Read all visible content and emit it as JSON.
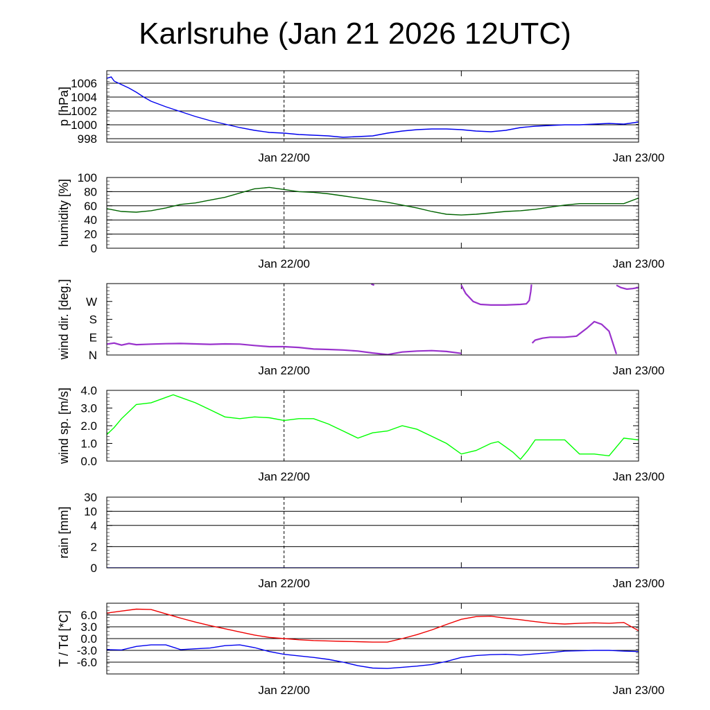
{
  "title": "Karlsruhe (Jan 21 2026 12UTC)",
  "x_axis": {
    "tick_labels": [
      "Jan 22/00",
      "Jan 23/00"
    ],
    "range_hours": [
      0,
      36
    ],
    "label_hours": [
      12,
      36
    ],
    "minor_tick_hours": [
      24
    ],
    "dashed_line_hours": 12
  },
  "chart_data": [
    {
      "id": "pressure",
      "type": "line",
      "ylabel": "p [hPa]",
      "ylim": [
        997.5,
        1007.8
      ],
      "yticks": [
        998,
        1000,
        1002,
        1004,
        1006
      ],
      "ytick_labels": [
        "998",
        "1000",
        "1002",
        "1004",
        "1006"
      ],
      "grid": true,
      "series": [
        {
          "color": "#0000ee",
          "x": [
            0,
            0.3,
            0.5,
            1,
            1.5,
            2,
            2.5,
            3,
            4,
            5,
            6,
            7,
            8,
            9,
            10,
            11,
            12,
            13,
            14,
            15,
            16,
            17,
            18,
            19,
            20,
            21,
            22,
            23,
            24,
            25,
            26,
            27,
            28,
            29,
            30,
            31,
            32,
            33,
            34,
            35,
            36
          ],
          "values": [
            1006.7,
            1006.9,
            1006.3,
            1005.8,
            1005.3,
            1004.7,
            1004.0,
            1003.4,
            1002.6,
            1001.9,
            1001.2,
            1000.6,
            1000.1,
            999.6,
            999.2,
            998.9,
            998.8,
            998.6,
            998.5,
            998.4,
            998.2,
            998.3,
            998.4,
            998.8,
            999.1,
            999.3,
            999.4,
            999.4,
            999.3,
            999.1,
            999.0,
            999.2,
            999.6,
            999.8,
            999.9,
            1000.0,
            1000.0,
            1000.1,
            1000.2,
            1000.1,
            1000.4
          ]
        }
      ]
    },
    {
      "id": "humidity",
      "type": "line",
      "ylabel": "humidity [%]",
      "ylim": [
        0,
        100
      ],
      "yticks": [
        0,
        20,
        40,
        60,
        80,
        100
      ],
      "ytick_labels": [
        "0",
        "20",
        "40",
        "60",
        "80",
        "100"
      ],
      "grid": true,
      "series": [
        {
          "color": "#006400",
          "x": [
            0,
            1,
            2,
            3,
            4,
            5,
            6,
            7,
            8,
            9,
            10,
            11,
            12,
            13,
            14,
            15,
            16,
            17,
            18,
            19,
            20,
            21,
            22,
            23,
            24,
            25,
            26,
            27,
            28,
            29,
            30,
            31,
            32,
            33,
            34,
            35,
            36
          ],
          "values": [
            56,
            52,
            51,
            53,
            57,
            62,
            64,
            68,
            72,
            78,
            84,
            86,
            83,
            80,
            79,
            77,
            74,
            71,
            68,
            65,
            61,
            57,
            52,
            48,
            47,
            48,
            50,
            52,
            53,
            55,
            58,
            61,
            63,
            63,
            63,
            63,
            71
          ]
        }
      ]
    },
    {
      "id": "wind-direction",
      "type": "scatter",
      "ylabel": "wind dir. [deg.]",
      "ylim": [
        0,
        360
      ],
      "yticks": [
        0,
        90,
        180,
        270
      ],
      "ytick_labels": [
        "N",
        "E",
        "S",
        "W"
      ],
      "grid": false,
      "series": [
        {
          "color": "#9932cc",
          "segments": [
            {
              "x": [
                0,
                0.5,
                1,
                1.5,
                2,
                3,
                4,
                5,
                6,
                7,
                8,
                9,
                10,
                11,
                12,
                13,
                14,
                15,
                16,
                17,
                18,
                19,
                20,
                21,
                22,
                23,
                24
              ],
              "values": [
                55,
                60,
                50,
                58,
                52,
                55,
                57,
                58,
                56,
                54,
                56,
                55,
                48,
                42,
                42,
                38,
                30,
                28,
                25,
                20,
                10,
                2,
                15,
                20,
                22,
                18,
                8
              ]
            },
            {
              "x": [
                17.9,
                18.1
              ],
              "values": [
                358,
                352
              ]
            },
            {
              "x": [
                24,
                24.3,
                24.8,
                25.3,
                26,
                27,
                28,
                28.4,
                28.6,
                28.7,
                28.75
              ],
              "values": [
                352,
                310,
                270,
                255,
                252,
                252,
                255,
                258,
                275,
                320,
                355
              ]
            },
            {
              "x": [
                28.8,
                29,
                29.5,
                30,
                31,
                31.8,
                32.5,
                33,
                33.5,
                34,
                34.5
              ],
              "values": [
                60,
                75,
                85,
                90,
                90,
                95,
                135,
                168,
                155,
                120,
                5
              ]
            },
            {
              "x": [
                34.5,
                34.8,
                35.2,
                35.6,
                36
              ],
              "values": [
                352,
                340,
                332,
                335,
                340
              ]
            }
          ]
        }
      ]
    },
    {
      "id": "wind-speed",
      "type": "line",
      "ylabel": "wind sp. [m/s]",
      "ylim": [
        0,
        4.0
      ],
      "yticks": [
        0,
        1,
        2,
        3,
        4
      ],
      "ytick_labels": [
        "0.0",
        "1.0",
        "2.0",
        "3.0",
        "4.0"
      ],
      "grid": false,
      "series": [
        {
          "color": "#00ff00",
          "x": [
            0,
            0.5,
            1,
            1.5,
            2,
            3,
            4,
            4.5,
            5,
            6,
            7,
            8,
            9,
            10,
            11,
            12,
            13,
            14,
            15,
            16,
            17,
            18,
            19,
            20,
            21,
            22,
            23,
            24,
            25,
            26,
            26.5,
            27,
            27.5,
            28,
            28.5,
            29,
            30,
            31,
            32,
            33,
            34,
            35,
            36
          ],
          "values": [
            1.5,
            1.9,
            2.4,
            2.8,
            3.2,
            3.3,
            3.6,
            3.75,
            3.6,
            3.3,
            2.9,
            2.5,
            2.4,
            2.5,
            2.45,
            2.3,
            2.4,
            2.4,
            2.1,
            1.7,
            1.3,
            1.6,
            1.7,
            2.0,
            1.8,
            1.4,
            1.0,
            0.4,
            0.6,
            1.0,
            1.1,
            0.8,
            0.5,
            0.1,
            0.6,
            1.2,
            1.2,
            1.2,
            0.4,
            0.4,
            0.3,
            1.3,
            1.2
          ]
        }
      ]
    },
    {
      "id": "rain",
      "type": "line",
      "ylabel": "rain [mm]",
      "ylim": [
        0,
        30
      ],
      "yticks": [
        0,
        2,
        4,
        10,
        30
      ],
      "ytick_labels": [
        "0",
        "2",
        "4",
        "10",
        "30"
      ],
      "ytick_fractions": [
        0,
        0.3,
        0.6,
        0.8,
        1.0
      ],
      "grid": true,
      "series": [
        {
          "color": "#0000ee",
          "x": [
            0,
            36
          ],
          "values": [
            0,
            0
          ]
        }
      ]
    },
    {
      "id": "temperature",
      "type": "line",
      "ylabel": "T / Td [*C]",
      "ylim": [
        -9,
        9
      ],
      "yticks": [
        -6,
        -3,
        0,
        3,
        6
      ],
      "ytick_labels": [
        "-6.0",
        "-3.0",
        "0.0",
        "3.0",
        "6.0"
      ],
      "grid": true,
      "series": [
        {
          "color": "#ee0000",
          "x": [
            0,
            1,
            2,
            3,
            4,
            5,
            6,
            7,
            8,
            9,
            10,
            11,
            12,
            13,
            14,
            15,
            16,
            17,
            18,
            19,
            20,
            21,
            22,
            23,
            24,
            25,
            26,
            27,
            28,
            29,
            30,
            31,
            32,
            33,
            34,
            35,
            36
          ],
          "values": [
            6.5,
            7.0,
            7.5,
            7.4,
            6.3,
            5.2,
            4.2,
            3.3,
            2.5,
            1.7,
            0.9,
            0.3,
            0.0,
            -0.3,
            -0.5,
            -0.6,
            -0.7,
            -0.8,
            -0.9,
            -0.9,
            0.0,
            1.0,
            2.2,
            3.6,
            4.9,
            5.6,
            5.7,
            5.2,
            4.8,
            4.3,
            3.9,
            3.7,
            3.9,
            4.0,
            3.9,
            4.1,
            2.0
          ]
        },
        {
          "color": "#0000ee",
          "x": [
            0,
            1,
            2,
            3,
            4,
            5,
            6,
            7,
            8,
            9,
            10,
            11,
            12,
            13,
            14,
            15,
            16,
            17,
            18,
            19,
            20,
            21,
            22,
            23,
            24,
            25,
            26,
            27,
            28,
            29,
            30,
            31,
            32,
            33,
            34,
            35,
            36
          ],
          "values": [
            -2.8,
            -2.9,
            -2.0,
            -1.6,
            -1.6,
            -2.8,
            -2.6,
            -2.4,
            -1.8,
            -1.6,
            -2.3,
            -3.3,
            -4.0,
            -4.4,
            -4.8,
            -5.3,
            -6.0,
            -6.9,
            -7.5,
            -7.6,
            -7.3,
            -7.0,
            -6.6,
            -5.8,
            -4.8,
            -4.3,
            -4.1,
            -4.0,
            -4.2,
            -3.9,
            -3.6,
            -3.2,
            -3.1,
            -3.0,
            -3.0,
            -3.2,
            -3.3
          ]
        }
      ]
    }
  ]
}
